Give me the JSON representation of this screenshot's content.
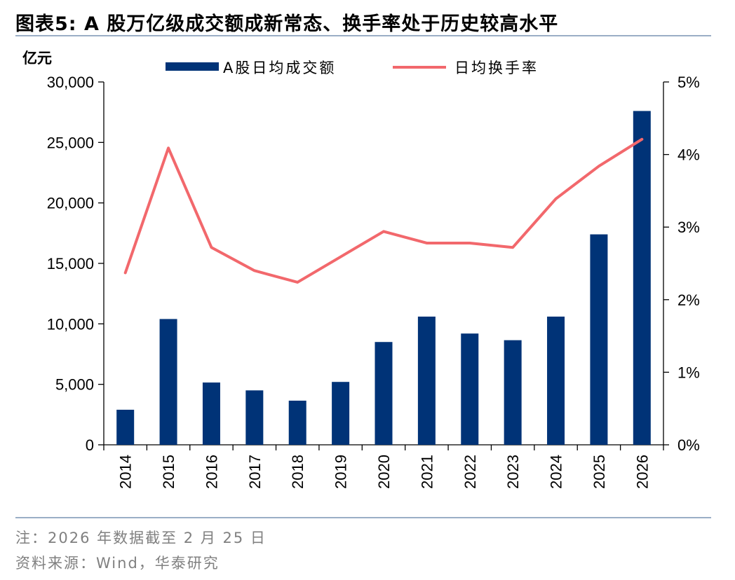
{
  "figure_title": "图表5:  A 股万亿级成交额成新常态、换手率处于历史较高水平",
  "note": "注：2026 年数据截至 2 月 25 日",
  "source": "资料来源：Wind，华泰研究",
  "colors": {
    "bar": "#003377",
    "line": "#f2686c",
    "rule": "#9aaec6"
  },
  "chart_data": {
    "type": "bar+line",
    "title": "",
    "left_unit_label": "亿元",
    "categories": [
      "2014",
      "2015",
      "2016",
      "2017",
      "2018",
      "2019",
      "2020",
      "2021",
      "2022",
      "2023",
      "2024",
      "2025",
      "2026"
    ],
    "series": [
      {
        "name": "A股日均成交额",
        "type": "bar",
        "axis": "left",
        "values": [
          2900,
          10400,
          5150,
          4500,
          3650,
          5200,
          8500,
          10600,
          9200,
          8650,
          10600,
          17400,
          27600
        ]
      },
      {
        "name": "日均换手率",
        "type": "line",
        "axis": "right",
        "values": [
          2.37,
          4.09,
          2.72,
          2.4,
          2.24,
          2.59,
          2.94,
          2.78,
          2.78,
          2.72,
          3.39,
          3.84,
          4.21
        ]
      }
    ],
    "y_left": {
      "range": [
        0,
        30000
      ],
      "ticks": [
        "0",
        "5,000",
        "10,000",
        "15,000",
        "20,000",
        "25,000",
        "30,000"
      ]
    },
    "y_right": {
      "range": [
        0,
        5
      ],
      "ticks": [
        "0%",
        "1%",
        "2%",
        "3%",
        "4%",
        "5%"
      ]
    },
    "grid": false,
    "legend_position": "top-center"
  }
}
